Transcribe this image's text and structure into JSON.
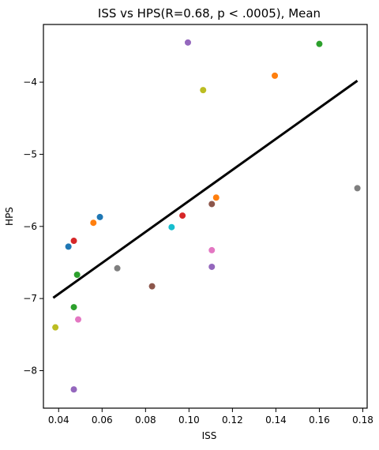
{
  "chart_data": {
    "type": "scatter",
    "title": "ISS vs HPS(R=0.68, p < .0005), Mean",
    "xlabel": "ISS",
    "ylabel": "HPS",
    "xlim": [
      0.033,
      0.182
    ],
    "ylim": [
      -8.52,
      -3.2
    ],
    "xticks": [
      0.04,
      0.06,
      0.08,
      0.1,
      0.12,
      0.14,
      0.16,
      0.18
    ],
    "xtick_labels": [
      "0.04",
      "0.06",
      "0.08",
      "0.10",
      "0.12",
      "0.14",
      "0.16",
      "0.18"
    ],
    "yticks": [
      -8,
      -7,
      -6,
      -5,
      -4
    ],
    "ytick_labels": [
      "−8",
      "−7",
      "−6",
      "−5",
      "−4"
    ],
    "grid": false,
    "legend": "none",
    "points": [
      {
        "x": 0.0385,
        "y": -7.4,
        "color": "#bcbd22"
      },
      {
        "x": 0.0445,
        "y": -6.28,
        "color": "#1f77b4"
      },
      {
        "x": 0.047,
        "y": -6.2,
        "color": "#d62728"
      },
      {
        "x": 0.047,
        "y": -7.12,
        "color": "#2ca02c"
      },
      {
        "x": 0.047,
        "y": -8.26,
        "color": "#9467bd"
      },
      {
        "x": 0.0485,
        "y": -6.67,
        "color": "#2ca02c"
      },
      {
        "x": 0.049,
        "y": -7.29,
        "color": "#e377c2"
      },
      {
        "x": 0.056,
        "y": -5.95,
        "color": "#ff7f0e"
      },
      {
        "x": 0.059,
        "y": -5.87,
        "color": "#1f77b4"
      },
      {
        "x": 0.067,
        "y": -6.58,
        "color": "#7f7f7f"
      },
      {
        "x": 0.083,
        "y": -6.83,
        "color": "#8c564b"
      },
      {
        "x": 0.092,
        "y": -6.01,
        "color": "#17becf"
      },
      {
        "x": 0.097,
        "y": -5.85,
        "color": "#d62728"
      },
      {
        "x": 0.0995,
        "y": -3.45,
        "color": "#9467bd"
      },
      {
        "x": 0.1065,
        "y": -4.11,
        "color": "#bcbd22"
      },
      {
        "x": 0.1105,
        "y": -5.69,
        "color": "#8c564b"
      },
      {
        "x": 0.1105,
        "y": -6.33,
        "color": "#e377c2"
      },
      {
        "x": 0.1105,
        "y": -6.56,
        "color": "#9467bd"
      },
      {
        "x": 0.1125,
        "y": -5.6,
        "color": "#ff7f0e"
      },
      {
        "x": 0.1395,
        "y": -3.91,
        "color": "#ff7f0e"
      },
      {
        "x": 0.16,
        "y": -3.47,
        "color": "#2ca02c"
      },
      {
        "x": 0.1775,
        "y": -5.47,
        "color": "#7f7f7f"
      }
    ],
    "fit_line": {
      "x": [
        0.0375,
        0.1775
      ],
      "y": [
        -6.99,
        -3.98
      ],
      "color": "#000000"
    }
  }
}
